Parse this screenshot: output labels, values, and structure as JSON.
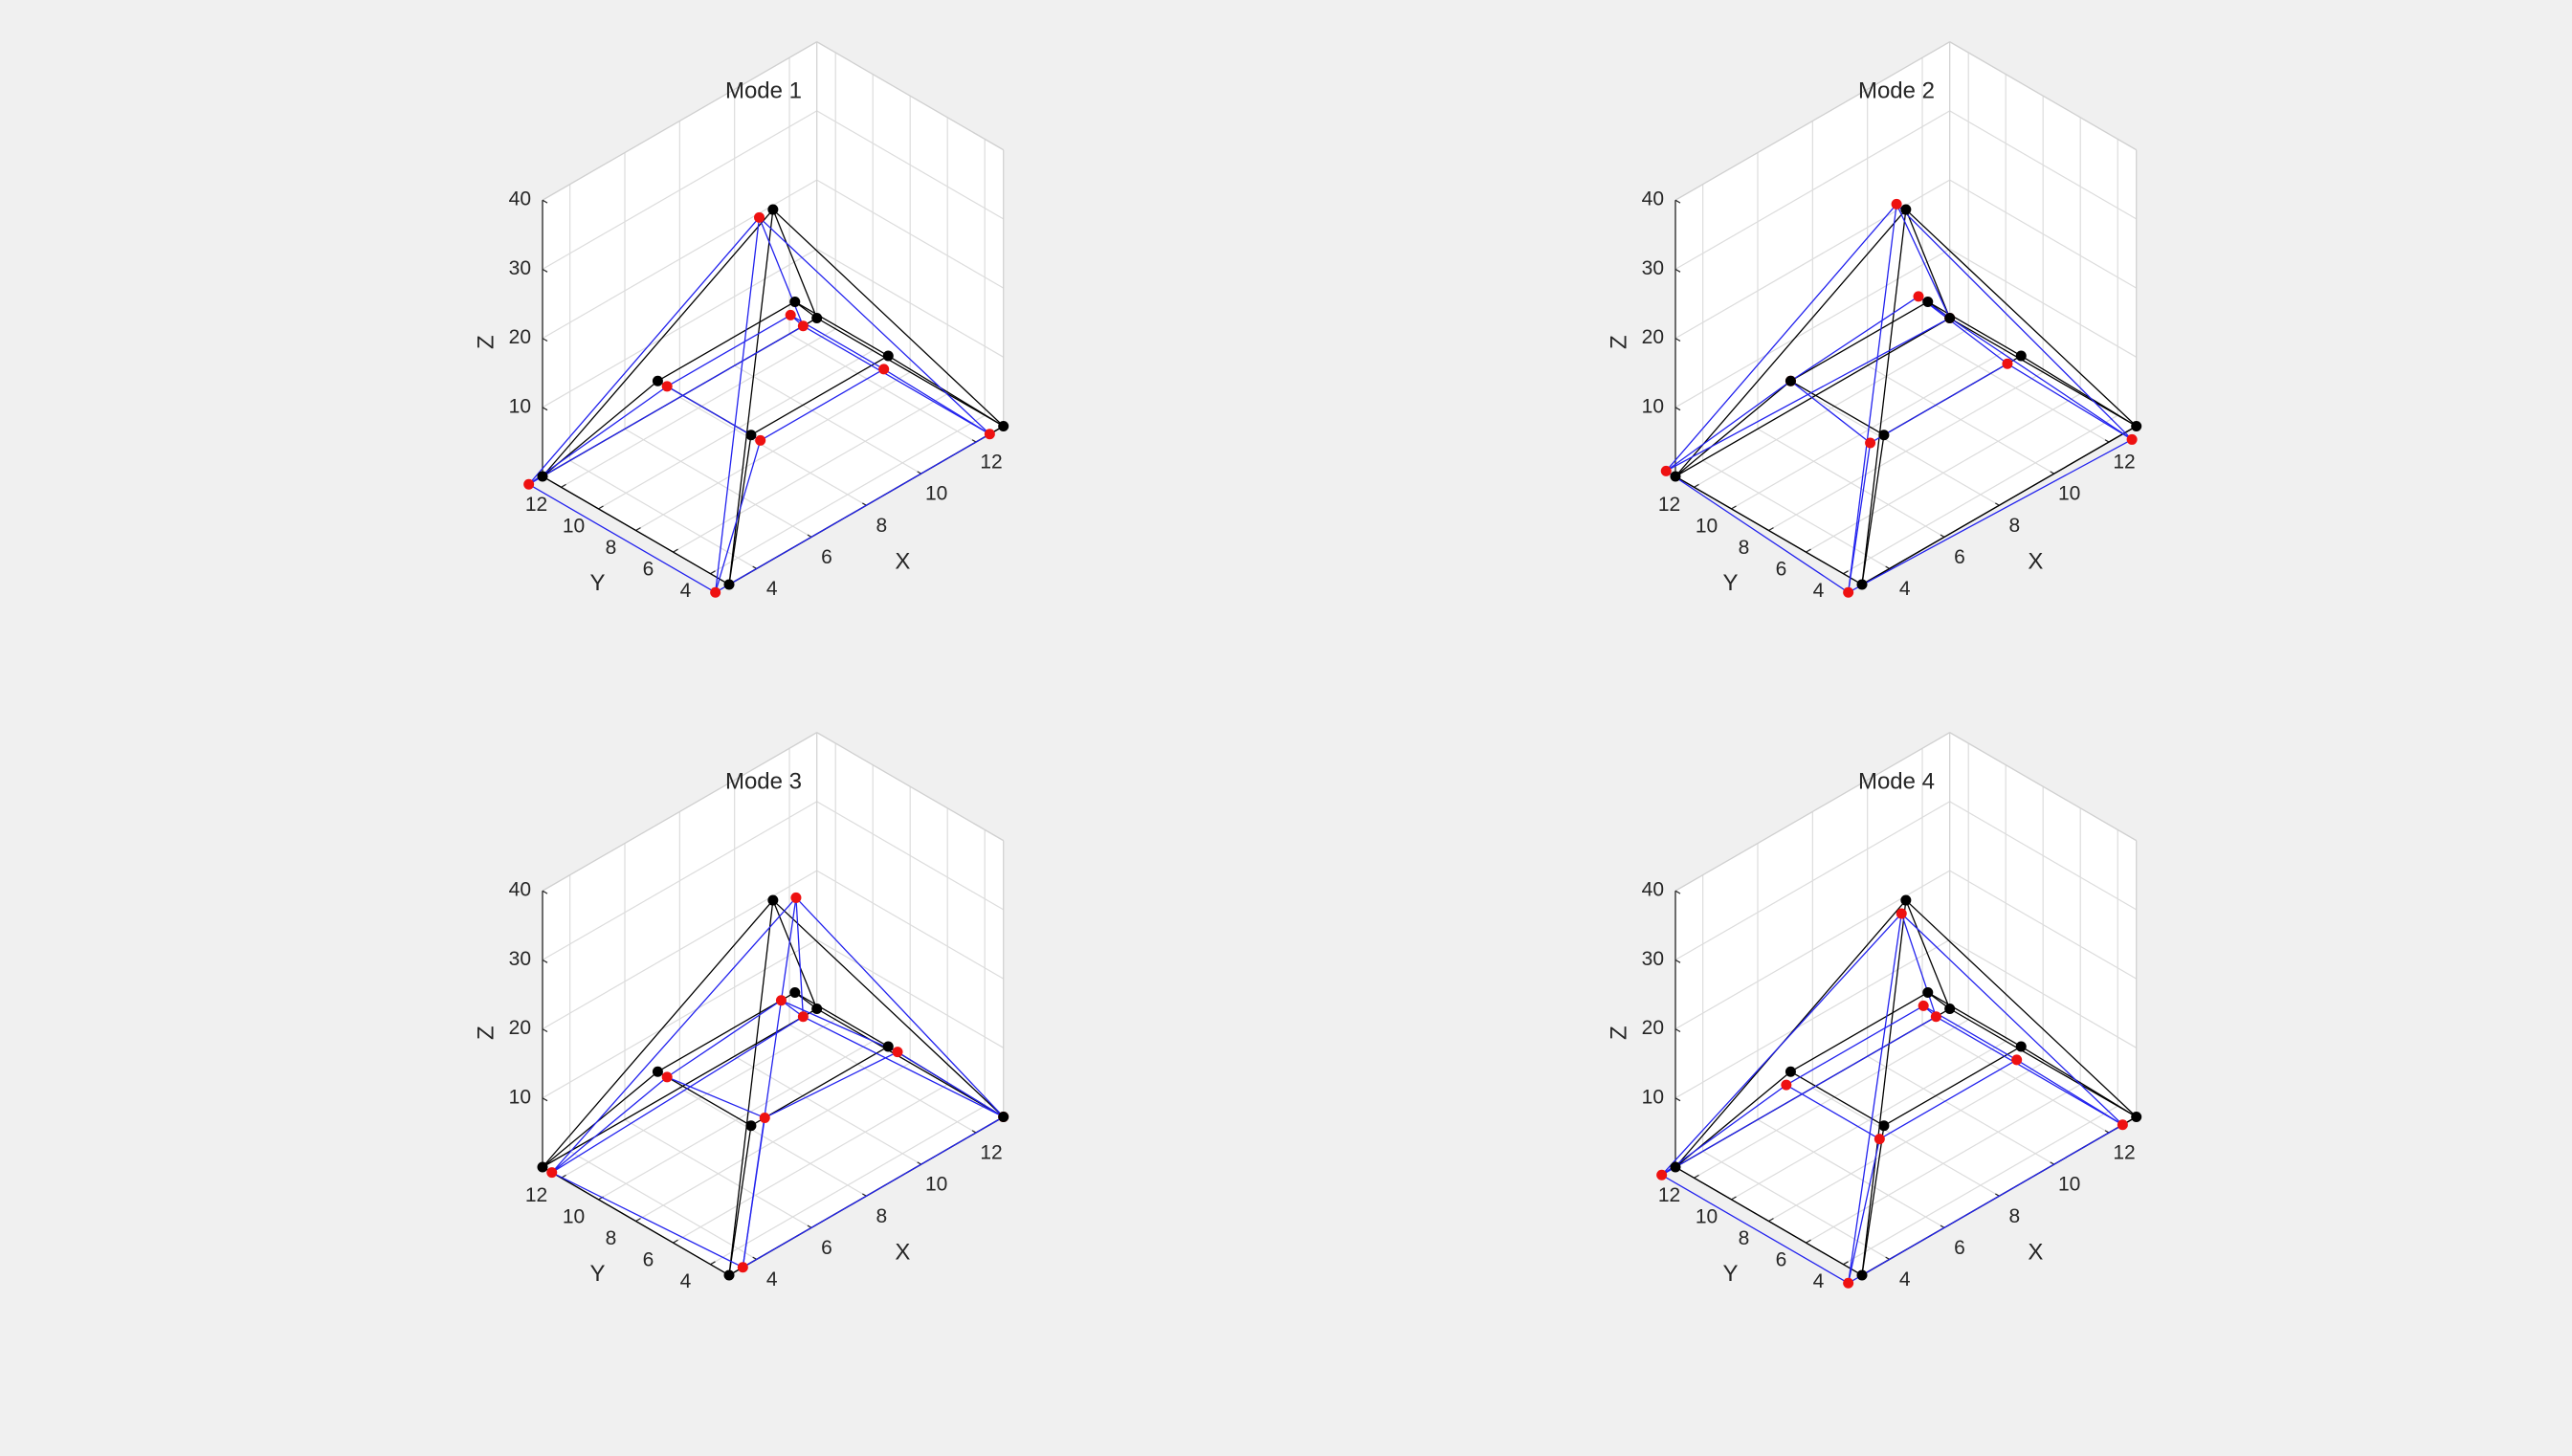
{
  "chart_data": [
    {
      "type": "3d-wireframe",
      "title": "Mode 1",
      "xlabel": "X",
      "ylabel": "Y",
      "zlabel": "Z",
      "xticks": [
        4,
        6,
        8,
        10,
        12
      ],
      "yticks": [
        4,
        6,
        8,
        10,
        12
      ],
      "zticks": [
        10,
        20,
        30,
        40
      ],
      "xlim": [
        3,
        13
      ],
      "ylim": [
        3,
        13
      ],
      "zlim": [
        0,
        40
      ],
      "grid": true,
      "undeformed": [
        [
          3,
          13,
          0
        ],
        [
          3,
          3,
          0
        ],
        [
          13,
          3,
          0
        ],
        [
          13,
          13,
          0
        ],
        [
          5.5,
          10.5,
          12
        ],
        [
          5.5,
          5.5,
          12
        ],
        [
          10.5,
          5.5,
          12
        ],
        [
          10.5,
          10.5,
          12
        ],
        [
          8,
          8,
          35
        ]
      ],
      "deformed": [
        [
          2.5,
          13,
          0
        ],
        [
          2.5,
          3,
          0
        ],
        [
          12.5,
          3,
          0
        ],
        [
          12.5,
          13,
          0
        ],
        [
          5.5,
          10,
          12
        ],
        [
          5.5,
          5,
          12
        ],
        [
          10,
          5,
          12
        ],
        [
          10,
          10,
          12
        ],
        [
          7.5,
          8,
          35
        ]
      ],
      "edges": [
        [
          0,
          1
        ],
        [
          1,
          2
        ],
        [
          2,
          3
        ],
        [
          3,
          0
        ],
        [
          4,
          5
        ],
        [
          5,
          6
        ],
        [
          6,
          7
        ],
        [
          7,
          4
        ],
        [
          0,
          4
        ],
        [
          1,
          5
        ],
        [
          2,
          6
        ],
        [
          3,
          7
        ],
        [
          0,
          8
        ],
        [
          1,
          8
        ],
        [
          2,
          8
        ],
        [
          3,
          8
        ]
      ],
      "colors": {
        "undeformed": "#000000",
        "deformed": "#2222ee",
        "deformed_nodes": "#ee1111"
      }
    },
    {
      "type": "3d-wireframe",
      "title": "Mode 2",
      "xlabel": "X",
      "ylabel": "Y",
      "zlabel": "Z",
      "xticks": [
        4,
        6,
        8,
        10,
        12
      ],
      "yticks": [
        4,
        6,
        8,
        10,
        12
      ],
      "zticks": [
        10,
        20,
        30,
        40
      ],
      "xlim": [
        3,
        13
      ],
      "ylim": [
        3,
        13
      ],
      "zlim": [
        0,
        40
      ],
      "grid": true,
      "undeformed": [
        [
          3,
          13,
          0
        ],
        [
          3,
          3,
          0
        ],
        [
          13,
          3,
          0
        ],
        [
          13,
          13,
          0
        ],
        [
          5.5,
          10.5,
          12
        ],
        [
          5.5,
          5.5,
          12
        ],
        [
          10.5,
          5.5,
          12
        ],
        [
          10.5,
          10.5,
          12
        ],
        [
          8,
          8,
          35
        ]
      ],
      "deformed": [
        [
          3,
          13.5,
          0
        ],
        [
          2.5,
          3,
          0
        ],
        [
          12.5,
          2.5,
          0
        ],
        [
          13,
          13,
          0
        ],
        [
          5.5,
          10.5,
          12
        ],
        [
          5,
          5.5,
          12
        ],
        [
          10,
          5.5,
          12
        ],
        [
          10.5,
          11,
          12
        ],
        [
          8,
          8.5,
          35
        ]
      ],
      "edges": [
        [
          0,
          1
        ],
        [
          1,
          2
        ],
        [
          2,
          3
        ],
        [
          3,
          0
        ],
        [
          4,
          5
        ],
        [
          5,
          6
        ],
        [
          6,
          7
        ],
        [
          7,
          4
        ],
        [
          0,
          4
        ],
        [
          1,
          5
        ],
        [
          2,
          6
        ],
        [
          3,
          7
        ],
        [
          0,
          8
        ],
        [
          1,
          8
        ],
        [
          2,
          8
        ],
        [
          3,
          8
        ]
      ],
      "colors": {
        "undeformed": "#000000",
        "deformed": "#2222ee",
        "deformed_nodes": "#ee1111"
      }
    },
    {
      "type": "3d-wireframe",
      "title": "Mode 3",
      "xlabel": "X",
      "ylabel": "Y",
      "zlabel": "Z",
      "xticks": [
        4,
        6,
        8,
        10,
        12
      ],
      "yticks": [
        4,
        6,
        8,
        10,
        12
      ],
      "zticks": [
        10,
        20,
        30,
        40
      ],
      "xlim": [
        3,
        13
      ],
      "ylim": [
        3,
        13
      ],
      "zlim": [
        0,
        40
      ],
      "grid": true,
      "undeformed": [
        [
          3,
          13,
          0
        ],
        [
          3,
          3,
          0
        ],
        [
          13,
          3,
          0
        ],
        [
          13,
          13,
          0
        ],
        [
          5.5,
          10.5,
          12
        ],
        [
          5.5,
          5.5,
          12
        ],
        [
          10.5,
          5.5,
          12
        ],
        [
          10.5,
          10.5,
          12
        ],
        [
          8,
          8,
          35
        ]
      ],
      "deformed": [
        [
          3,
          12.5,
          0
        ],
        [
          3.5,
          3,
          0
        ],
        [
          13,
          3,
          0
        ],
        [
          12.5,
          13,
          0
        ],
        [
          5.5,
          10,
          12
        ],
        [
          6,
          5.5,
          12
        ],
        [
          10.5,
          5,
          12
        ],
        [
          10,
          10.5,
          12
        ],
        [
          8.5,
          7.5,
          35
        ]
      ],
      "edges": [
        [
          0,
          1
        ],
        [
          1,
          2
        ],
        [
          2,
          3
        ],
        [
          3,
          0
        ],
        [
          4,
          5
        ],
        [
          5,
          6
        ],
        [
          6,
          7
        ],
        [
          7,
          4
        ],
        [
          0,
          4
        ],
        [
          1,
          5
        ],
        [
          2,
          6
        ],
        [
          3,
          7
        ],
        [
          0,
          8
        ],
        [
          1,
          8
        ],
        [
          2,
          8
        ],
        [
          3,
          8
        ]
      ],
      "colors": {
        "undeformed": "#000000",
        "deformed": "#2222ee",
        "deformed_nodes": "#ee1111"
      }
    },
    {
      "type": "3d-wireframe",
      "title": "Mode 4",
      "xlabel": "X",
      "ylabel": "Y",
      "zlabel": "Z",
      "xticks": [
        4,
        6,
        8,
        10,
        12
      ],
      "yticks": [
        4,
        6,
        8,
        10,
        12
      ],
      "zticks": [
        10,
        20,
        30,
        40
      ],
      "xlim": [
        3,
        13
      ],
      "ylim": [
        3,
        13
      ],
      "zlim": [
        0,
        40
      ],
      "grid": true,
      "undeformed": [
        [
          3,
          13,
          0
        ],
        [
          3,
          3,
          0
        ],
        [
          13,
          3,
          0
        ],
        [
          13,
          13,
          0
        ],
        [
          5.5,
          10.5,
          12
        ],
        [
          5.5,
          5.5,
          12
        ],
        [
          10.5,
          5.5,
          12
        ],
        [
          10.5,
          10.5,
          12
        ],
        [
          8,
          8,
          35
        ]
      ],
      "deformed": [
        [
          2.5,
          13,
          0
        ],
        [
          2.5,
          3,
          0
        ],
        [
          12.5,
          3,
          0
        ],
        [
          12.5,
          13,
          0
        ],
        [
          5,
          10,
          12
        ],
        [
          5,
          5,
          12
        ],
        [
          10,
          5,
          12
        ],
        [
          10,
          10,
          12
        ],
        [
          7.5,
          7.5,
          35
        ]
      ],
      "edges": [
        [
          0,
          1
        ],
        [
          1,
          2
        ],
        [
          2,
          3
        ],
        [
          3,
          0
        ],
        [
          4,
          5
        ],
        [
          5,
          6
        ],
        [
          6,
          7
        ],
        [
          7,
          4
        ],
        [
          0,
          4
        ],
        [
          1,
          5
        ],
        [
          2,
          6
        ],
        [
          3,
          7
        ],
        [
          0,
          8
        ],
        [
          1,
          8
        ],
        [
          2,
          8
        ],
        [
          3,
          8
        ]
      ],
      "colors": {
        "undeformed": "#000000",
        "deformed": "#2222ee",
        "deformed_nodes": "#ee1111"
      }
    }
  ]
}
